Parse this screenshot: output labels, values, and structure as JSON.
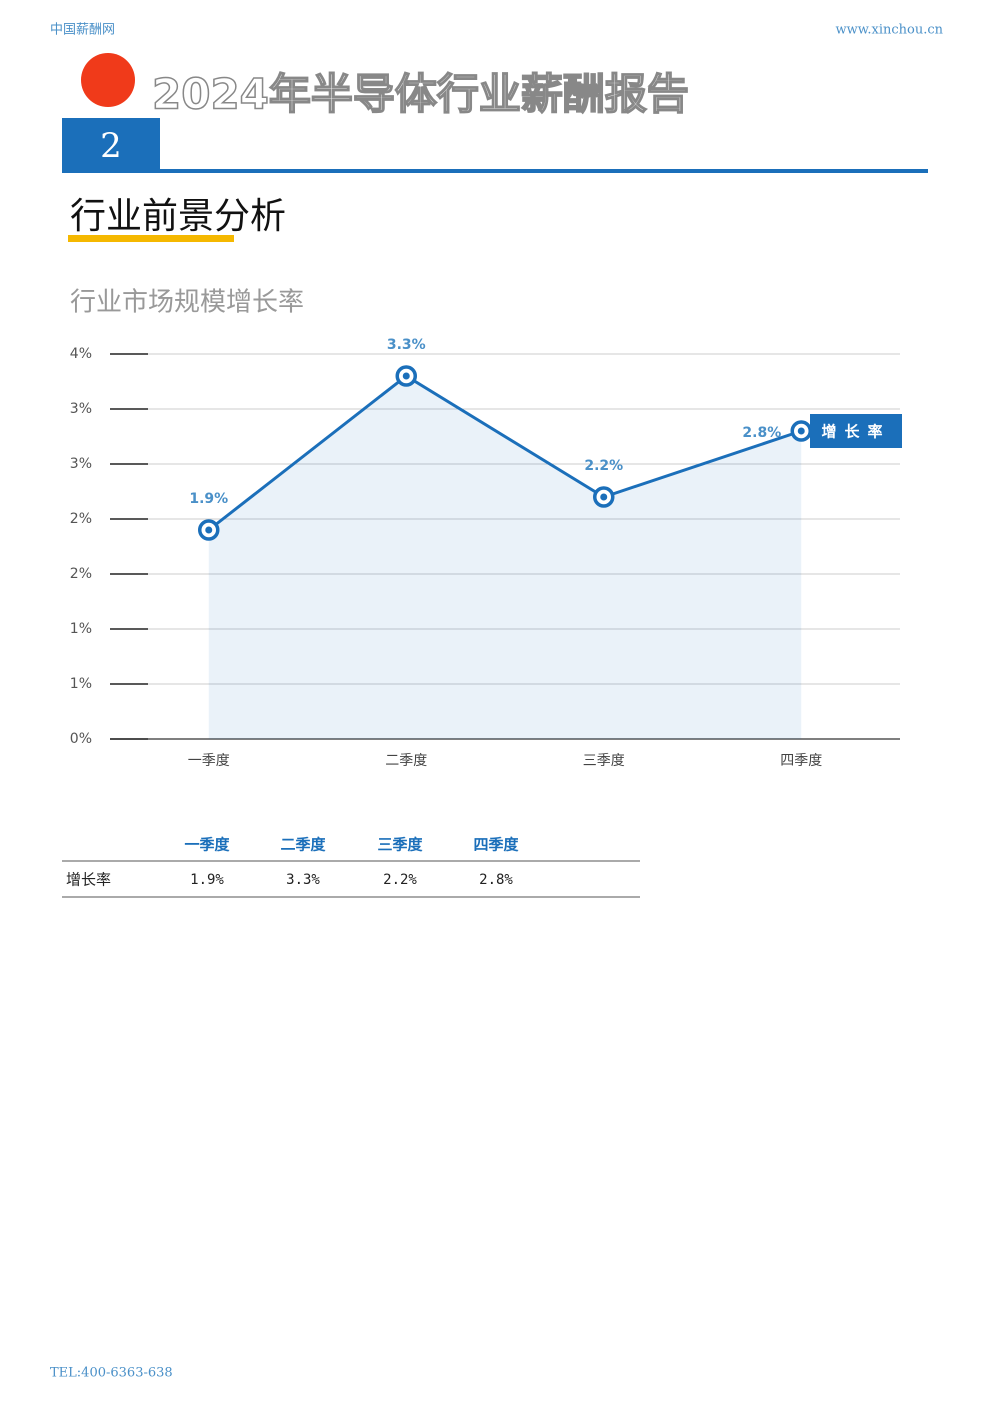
{
  "header": {
    "site": "中国薪酬网",
    "url": "www.xinchou.cn",
    "title": "2024年半导体行业薪酬报告",
    "chapter": "2"
  },
  "section_title": "行业前景分析",
  "chart_data": {
    "type": "line",
    "title": "行业市场规模增长率",
    "categories": [
      "一季度",
      "二季度",
      "三季度",
      "四季度"
    ],
    "series": [
      {
        "name": "增长率",
        "color": "#1b6fba",
        "values": [
          1.9,
          3.3,
          2.2,
          2.8
        ],
        "value_labels": [
          "1.9%",
          "3.3%",
          "2.2%",
          "2.8%"
        ]
      }
    ],
    "ylim": [
      0,
      3.5
    ],
    "yticks": [
      {
        "value": 0,
        "label": "0%"
      },
      {
        "value": 0.5,
        "label": "1%"
      },
      {
        "value": 1,
        "label": "1%"
      },
      {
        "value": 1.5,
        "label": "2%"
      },
      {
        "value": 2,
        "label": "2%"
      },
      {
        "value": 2.5,
        "label": "3%"
      },
      {
        "value": 3,
        "label": "3%"
      },
      {
        "value": 3.5,
        "label": "4%"
      }
    ],
    "grid": true,
    "area": true,
    "legend": "right"
  },
  "table": {
    "columns": [
      "一季度",
      "二季度",
      "三季度",
      "四季度"
    ],
    "rows": [
      {
        "label": "增长率",
        "cells": [
          "1.9%",
          "3.3%",
          "2.2%",
          "2.8%"
        ]
      }
    ]
  },
  "footer": {
    "tel": "TEL:400-6363-638"
  }
}
